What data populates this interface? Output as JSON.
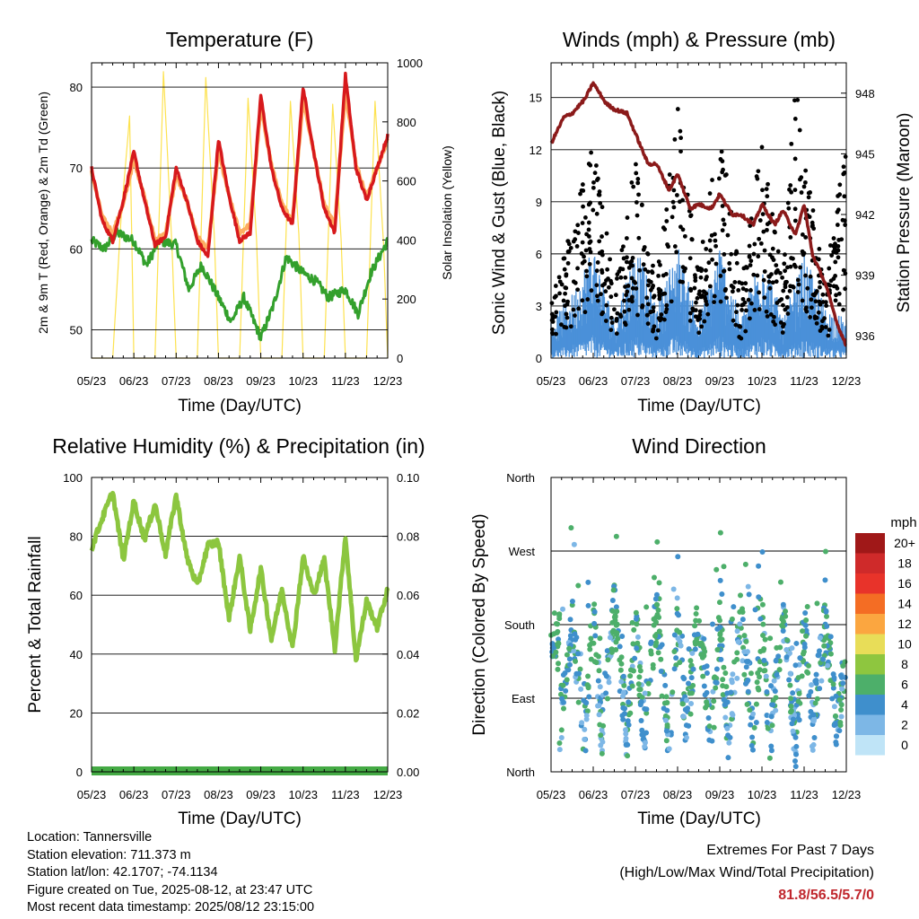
{
  "colors": {
    "t2m": "#d7191c",
    "t9m": "#fdae61",
    "td": "#33a02c",
    "solar": "#fde24f",
    "wind": "#4a90d9",
    "gust": "#000000",
    "pressure": "#8b1a1a",
    "rh": "#8cc63f",
    "precip": "#44aa44",
    "extremes": "#c0272d"
  },
  "time_ticks": [
    "05/23",
    "06/23",
    "07/23",
    "08/23",
    "09/23",
    "10/23",
    "11/23",
    "12/23"
  ],
  "panels": {
    "temperature": {
      "title": "Temperature (F)",
      "xlabel": "Time (Day/UTC)",
      "ylabel_left": "2m & 9m T (Red, Orange) & 2m Td (Green)",
      "ylabel_right": "Solar Insolation (Yellow)"
    },
    "winds": {
      "title": "Winds (mph) & Pressure (mb)",
      "xlabel": "Time (Day/UTC)",
      "ylabel_left": "Sonic Wind & Gust (Blue, Black)",
      "ylabel_right": "Station Pressure (Maroon)"
    },
    "humidity": {
      "title": "Relative Humidity (%) & Precipitation (in)",
      "xlabel": "Time (Day/UTC)",
      "ylabel_left": "Percent & Total Rainfall"
    },
    "direction": {
      "title": "Wind Direction",
      "xlabel": "Time (Day/UTC)",
      "ylabel_left": "Direction (Colored By Speed)"
    }
  },
  "legend": {
    "title": "mph",
    "labels": [
      "20+",
      "18",
      "16",
      "14",
      "12",
      "10",
      "8",
      "6",
      "4",
      "2",
      "0"
    ],
    "colors": [
      "#a01818",
      "#cf2a2a",
      "#e8332a",
      "#f46d24",
      "#fba640",
      "#e8dd58",
      "#8ec63f",
      "#4daf6a",
      "#3f8fcc",
      "#7db7e6",
      "#bfe4f7"
    ]
  },
  "info": {
    "location": "Location: Tannersville",
    "elevation": "Station elevation: 711.373 m",
    "latlon": "Station lat/lon: 42.1707; -74.1134",
    "created": "Figure created on Tue, 2025-08-12, at 23:47 UTC",
    "recent": "Most recent data timestamp: 2025/08/12 23:15:00"
  },
  "extremes": {
    "title": "Extremes For Past 7 Days",
    "subtitle": "(High/Low/Max Wind/Total Precipitation)",
    "values": "81.8/56.5/5.7/0"
  },
  "chart_data": [
    {
      "type": "line",
      "title": "Temperature (F)",
      "xlabel": "Time (Day/UTC)",
      "x_ticks": [
        "05/23",
        "06/23",
        "07/23",
        "08/23",
        "09/23",
        "10/23",
        "11/23",
        "12/23"
      ],
      "ylim": [
        46.5,
        83
      ],
      "y_ticks": [
        50,
        60,
        70,
        80
      ],
      "y2lim": [
        0,
        1000
      ],
      "y2_ticks": [
        0,
        200,
        400,
        600,
        800,
        1000
      ],
      "series": [
        {
          "name": "2m T (Red)",
          "axis": "left",
          "x": [
            0,
            0.25,
            0.5,
            0.75,
            1.0,
            1.25,
            1.5,
            1.75,
            2.0,
            2.25,
            2.5,
            2.75,
            3.0,
            3.25,
            3.5,
            3.75,
            4.0,
            4.25,
            4.5,
            4.75,
            5.0,
            5.25,
            5.5,
            5.75,
            6.0,
            6.25,
            6.5,
            6.75,
            7.0
          ],
          "y": [
            70,
            63.5,
            61,
            66,
            72,
            66,
            60.5,
            61.5,
            70,
            66,
            61,
            59,
            73.5,
            66.5,
            61,
            62,
            79,
            70,
            65,
            63,
            80,
            72,
            65,
            62,
            81.5,
            70,
            66,
            70,
            74
          ]
        },
        {
          "name": "9m T (Orange)",
          "axis": "left",
          "x": [
            0,
            0.25,
            0.5,
            0.75,
            1.0,
            1.25,
            1.5,
            1.75,
            2.0,
            2.25,
            2.5,
            2.75,
            3.0,
            3.25,
            3.5,
            3.75,
            4.0,
            4.25,
            4.5,
            4.75,
            5.0,
            5.25,
            5.5,
            5.75,
            6.0,
            6.25,
            6.5,
            6.75,
            7.0
          ],
          "y": [
            69.5,
            64,
            62,
            65.5,
            71,
            66.5,
            61,
            62,
            69,
            66,
            61.5,
            60,
            72,
            66.5,
            62,
            63,
            77.5,
            70.5,
            65.5,
            63.5,
            78.5,
            72,
            65.5,
            63,
            79.5,
            70.5,
            66.5,
            70,
            73.5
          ]
        },
        {
          "name": "2m Td (Green)",
          "axis": "left",
          "x": [
            0,
            0.3,
            0.6,
            1.0,
            1.3,
            1.6,
            2.0,
            2.3,
            2.6,
            3.0,
            3.3,
            3.6,
            4.0,
            4.3,
            4.6,
            5.0,
            5.3,
            5.6,
            6.0,
            6.3,
            6.6,
            7.0
          ],
          "y": [
            61,
            60,
            62,
            61,
            58,
            61,
            60.5,
            55,
            58,
            54,
            51,
            54,
            49,
            53,
            59,
            57,
            56,
            54,
            55,
            52,
            57,
            61
          ]
        },
        {
          "name": "Solar Insolation (Yellow)",
          "axis": "right",
          "x": [
            0,
            0.5,
            0.7,
            0.9,
            1.0,
            1.5,
            1.7,
            1.9,
            2.0,
            2.5,
            2.7,
            2.9,
            3.0,
            3.5,
            3.7,
            3.9,
            4.0,
            4.5,
            4.7,
            4.9,
            5.0,
            5.5,
            5.7,
            5.9,
            6.0,
            6.5,
            6.7,
            6.9,
            7.0
          ],
          "y": [
            0,
            0,
            480,
            820,
            0,
            0,
            970,
            380,
            0,
            0,
            950,
            420,
            0,
            0,
            880,
            400,
            0,
            0,
            870,
            420,
            0,
            0,
            860,
            400,
            0,
            0,
            870,
            390,
            0
          ]
        }
      ]
    },
    {
      "type": "scatter",
      "title": "Winds (mph) & Pressure (mb)",
      "xlabel": "Time (Day/UTC)",
      "x_ticks": [
        "05/23",
        "06/23",
        "07/23",
        "08/23",
        "09/23",
        "10/23",
        "11/23",
        "12/23"
      ],
      "ylim": [
        0,
        17
      ],
      "y_ticks": [
        0,
        3,
        6,
        9,
        12,
        15
      ],
      "y2lim": [
        934.9,
        949.5
      ],
      "y2_ticks": [
        936,
        939,
        942,
        945,
        948
      ],
      "series": [
        {
          "name": "Sonic Wind (Blue)",
          "axis": "left",
          "type": "area",
          "x": [
            0,
            0.5,
            1.0,
            1.5,
            2.0,
            2.5,
            3.0,
            3.5,
            4.0,
            4.5,
            5.0,
            5.5,
            6.0,
            6.5,
            7.0
          ],
          "y": [
            1.5,
            2.5,
            4.5,
            1.5,
            4.5,
            2.0,
            4.5,
            1.5,
            4.5,
            1.5,
            4.5,
            1.5,
            4.0,
            2.0,
            1.5
          ]
        },
        {
          "name": "Gust (Black)",
          "axis": "left",
          "type": "scatter",
          "x": [
            0,
            0.5,
            1.0,
            1.5,
            2.0,
            2.5,
            3.0,
            3.5,
            4.0,
            4.5,
            5.0,
            5.5,
            5.8,
            6.0,
            6.5,
            7.0
          ],
          "y": [
            3,
            7,
            11.5,
            4,
            10.5,
            4,
            13.2,
            4.5,
            12.5,
            4,
            11.5,
            4,
            15,
            10.5,
            4,
            12
          ]
        },
        {
          "name": "Station Pressure (Maroon)",
          "axis": "right",
          "type": "line",
          "x": [
            0,
            0.3,
            0.5,
            0.8,
            1.0,
            1.3,
            1.5,
            1.8,
            2.0,
            2.3,
            2.5,
            2.8,
            3.0,
            3.3,
            3.5,
            3.8,
            4.0,
            4.3,
            4.5,
            4.8,
            5.0,
            5.3,
            5.5,
            5.8,
            6.0,
            6.2,
            6.5,
            6.8,
            7.0
          ],
          "y": [
            945.5,
            946.8,
            947,
            947.7,
            948.5,
            947.5,
            947.2,
            947,
            946,
            944.5,
            944.5,
            943.2,
            944,
            942.3,
            942.5,
            942.3,
            943,
            942,
            942,
            941.5,
            942.5,
            941.5,
            942.2,
            941,
            942.5,
            940,
            938.6,
            936.5,
            935.5
          ]
        }
      ]
    },
    {
      "type": "line",
      "title": "Relative Humidity (%) & Precipitation (in)",
      "xlabel": "Time (Day/UTC)",
      "x_ticks": [
        "05/23",
        "06/23",
        "07/23",
        "08/23",
        "09/23",
        "10/23",
        "11/23",
        "12/23"
      ],
      "ylim": [
        0,
        100
      ],
      "y_ticks": [
        0,
        20,
        40,
        60,
        80,
        100
      ],
      "y2lim": [
        0,
        0.1
      ],
      "y2_ticks": [
        0.0,
        0.02,
        0.04,
        0.06,
        0.08,
        0.1
      ],
      "series": [
        {
          "name": "Relative Humidity",
          "axis": "left",
          "x": [
            0,
            0.25,
            0.5,
            0.75,
            1.0,
            1.25,
            1.5,
            1.75,
            2.0,
            2.25,
            2.5,
            2.75,
            3.0,
            3.25,
            3.5,
            3.75,
            4.0,
            4.25,
            4.5,
            4.75,
            5.0,
            5.25,
            5.5,
            5.75,
            6.0,
            6.25,
            6.5,
            6.75,
            7.0
          ],
          "y": [
            76,
            86,
            95,
            72,
            92,
            79,
            91,
            74,
            94,
            73,
            63,
            77,
            78,
            52,
            73,
            48,
            69,
            45,
            62,
            42,
            73,
            60,
            72,
            42,
            80,
            38,
            58,
            49,
            62
          ]
        },
        {
          "name": "Total Precipitation",
          "axis": "right",
          "x": [
            0,
            7
          ],
          "y": [
            0,
            0
          ]
        }
      ]
    },
    {
      "type": "scatter",
      "title": "Wind Direction",
      "xlabel": "Time (Day/UTC)",
      "x_ticks": [
        "05/23",
        "06/23",
        "07/23",
        "08/23",
        "09/23",
        "10/23",
        "11/23",
        "12/23"
      ],
      "ylim": [
        0,
        360
      ],
      "y_ticks": [
        "North",
        "East",
        "South",
        "West",
        "North"
      ],
      "series": [
        {
          "name": "Direction",
          "axis": "left",
          "x": [
            0.2,
            0.5,
            0.8,
            1.0,
            1.2,
            1.5,
            1.8,
            2.0,
            2.2,
            2.5,
            2.8,
            3.0,
            3.2,
            3.5,
            3.8,
            4.0,
            4.2,
            4.5,
            4.8,
            5.0,
            5.2,
            5.5,
            5.8,
            6.0,
            6.2,
            6.5,
            6.8,
            7.0
          ],
          "y": [
            55,
            180,
            45,
            190,
            50,
            200,
            45,
            185,
            50,
            190,
            40,
            185,
            50,
            195,
            40,
            180,
            45,
            190,
            45,
            185,
            40,
            200,
            35,
            180,
            55,
            180,
            50,
            160
          ],
          "speed": [
            2,
            3,
            2,
            4,
            2,
            3,
            2,
            4,
            2,
            4,
            2,
            3,
            2,
            4,
            2,
            4,
            2,
            3,
            2,
            4,
            2,
            3,
            2,
            4,
            2,
            3,
            2,
            4
          ]
        }
      ]
    }
  ]
}
